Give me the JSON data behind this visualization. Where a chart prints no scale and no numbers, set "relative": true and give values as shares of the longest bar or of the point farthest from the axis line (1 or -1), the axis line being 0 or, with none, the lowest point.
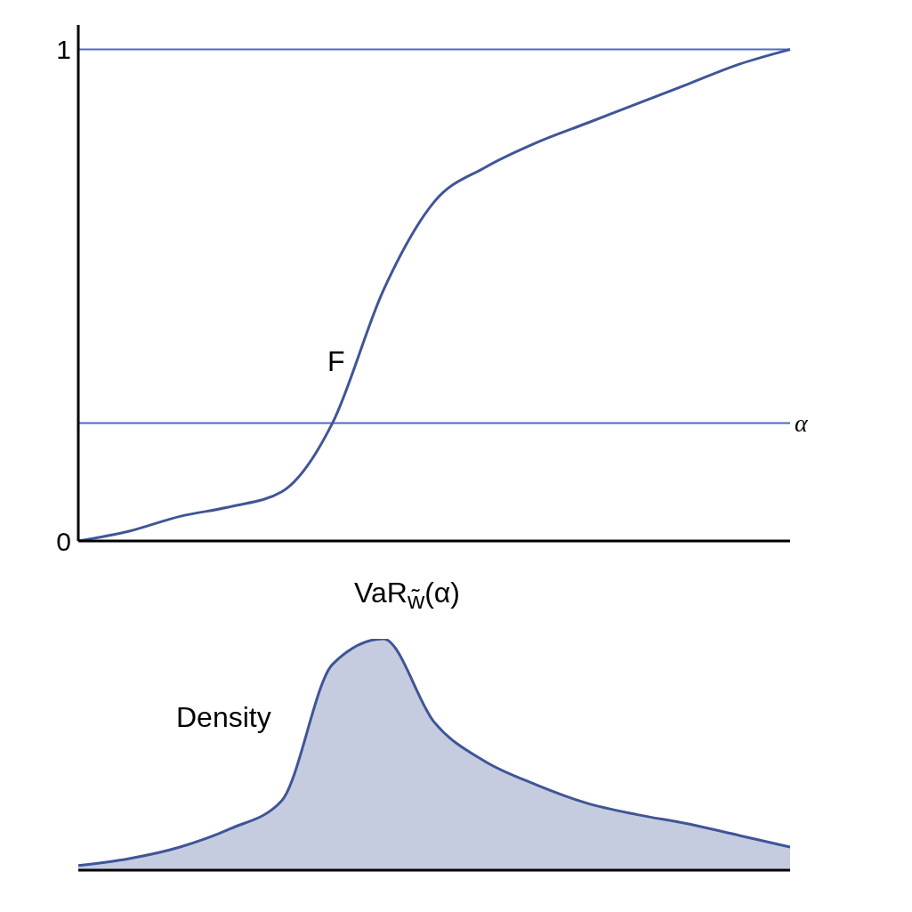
{
  "chart_data": [
    {
      "type": "line",
      "categories": [
        null,
        null,
        null,
        null,
        null,
        null,
        null,
        null,
        null,
        null,
        null,
        null,
        null,
        null,
        null
      ],
      "series": [
        {
          "color": "#3f5597",
          "values": [
            0.0,
            0.02,
            0.05,
            0.07,
            0.1,
            0.24,
            0.51,
            0.69,
            0.76,
            0.81,
            0.85,
            0.89,
            0.93,
            0.97,
            1.0
          ]
        }
      ],
      "ylim": [
        0,
        1.05
      ],
      "yticks": [
        0,
        1
      ],
      "tick_labels": "y",
      "grid": false,
      "legend": false,
      "marker": "none",
      "line_style": "solid",
      "ref_lines": [
        {
          "axis": "y",
          "value": 1,
          "color": "#4a6cc0"
        },
        {
          "axis": "y",
          "value": 0.24,
          "label": "α",
          "color": "#4a6cc0"
        }
      ],
      "annotations": [
        "F",
        "VaR$_{w̃}$(α)"
      ]
    },
    {
      "type": "area",
      "relative": true,
      "categories": [
        null,
        null,
        null,
        null,
        null,
        null,
        null,
        null,
        null,
        null,
        null,
        null,
        null,
        null,
        null
      ],
      "series": [
        {
          "color": "#3f5597",
          "values": [
            0.02,
            0.05,
            0.1,
            0.18,
            0.3,
            0.89,
            1.0,
            0.64,
            0.47,
            0.37,
            0.29,
            0.24,
            0.2,
            0.15,
            0.1
          ]
        }
      ],
      "tick_labels": false,
      "grid": false,
      "legend": false,
      "annotations": [
        "Density"
      ]
    }
  ]
}
